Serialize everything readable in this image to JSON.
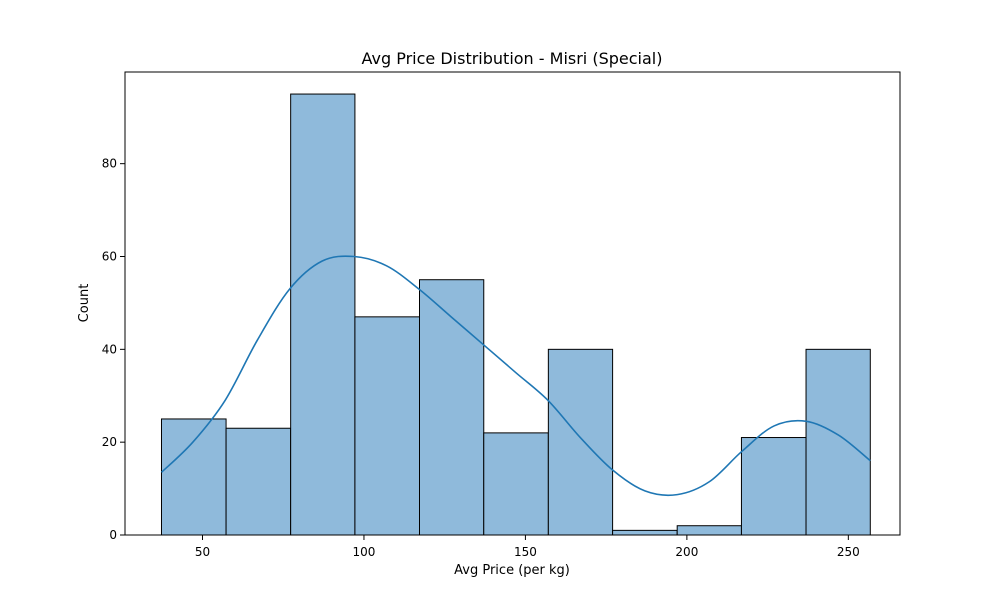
{
  "chart_data": {
    "type": "bar",
    "title": "Avg Price Distribution - Misri (Special)",
    "xlabel": "Avg Price (per kg)",
    "ylabel": "Count",
    "xlim": [
      26,
      266
    ],
    "ylim": [
      0,
      99.75
    ],
    "x_ticks": [
      50,
      100,
      150,
      200,
      250
    ],
    "y_ticks": [
      0,
      20,
      40,
      60,
      80
    ],
    "bins": [
      {
        "start": 37.3,
        "end": 57.3,
        "count": 25
      },
      {
        "start": 57.3,
        "end": 77.3,
        "count": 23
      },
      {
        "start": 77.3,
        "end": 97.2,
        "count": 95
      },
      {
        "start": 97.2,
        "end": 117.2,
        "count": 47
      },
      {
        "start": 117.2,
        "end": 137.1,
        "count": 55
      },
      {
        "start": 137.1,
        "end": 157.1,
        "count": 22
      },
      {
        "start": 157.1,
        "end": 177.0,
        "count": 40
      },
      {
        "start": 177.0,
        "end": 197.0,
        "count": 1
      },
      {
        "start": 197.0,
        "end": 216.9,
        "count": 2
      },
      {
        "start": 216.9,
        "end": 236.9,
        "count": 21
      },
      {
        "start": 236.9,
        "end": 256.8,
        "count": 40
      }
    ],
    "kde": {
      "x": [
        37.3,
        47,
        57,
        67,
        77,
        87,
        97,
        107,
        117,
        127,
        137,
        147,
        157,
        167,
        177,
        187,
        197,
        207,
        217,
        227,
        237,
        247,
        256.8
      ],
      "y": [
        13.5,
        20,
        29,
        42,
        53,
        59,
        60,
        58,
        53,
        47,
        41,
        35,
        29,
        21,
        14,
        9.5,
        8.7,
        11.5,
        18,
        23.5,
        24.5,
        21.5,
        16
      ]
    },
    "bar_color": "#8fbadb",
    "line_color": "#1f77b4",
    "grid": false
  }
}
